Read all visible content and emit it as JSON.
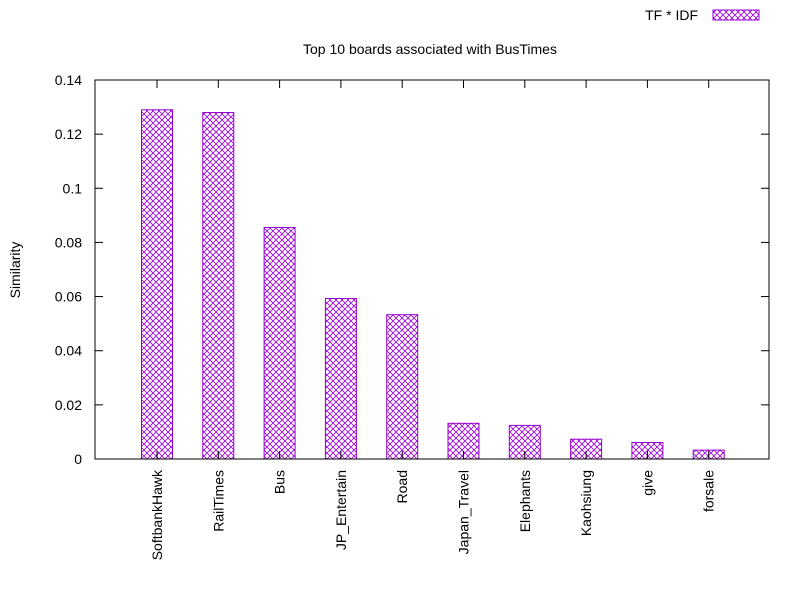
{
  "chart_data": {
    "type": "bar",
    "title": "Top 10 boards associated with BusTimes",
    "xlabel": "",
    "ylabel": "Similarity",
    "ylim": [
      0,
      0.14
    ],
    "yticks": [
      "0",
      "0.02",
      "0.04",
      "0.06",
      "0.08",
      "0.1",
      "0.12",
      "0.14"
    ],
    "grid": false,
    "legend_position": "top-right",
    "series": [
      {
        "name": "TF * IDF",
        "color": "#9400d3",
        "pattern": "crosshatch",
        "values": [
          0.129,
          0.128,
          0.0855,
          0.0593,
          0.0533,
          0.0132,
          0.0124,
          0.0073,
          0.0061,
          0.0033
        ]
      }
    ],
    "categories": [
      "SoftbankHawk",
      "RailTimes",
      "Bus",
      "JP_Entertain",
      "Road",
      "Japan_Travel",
      "Elephants",
      "Kaohsiung",
      "give",
      "forsale"
    ]
  }
}
